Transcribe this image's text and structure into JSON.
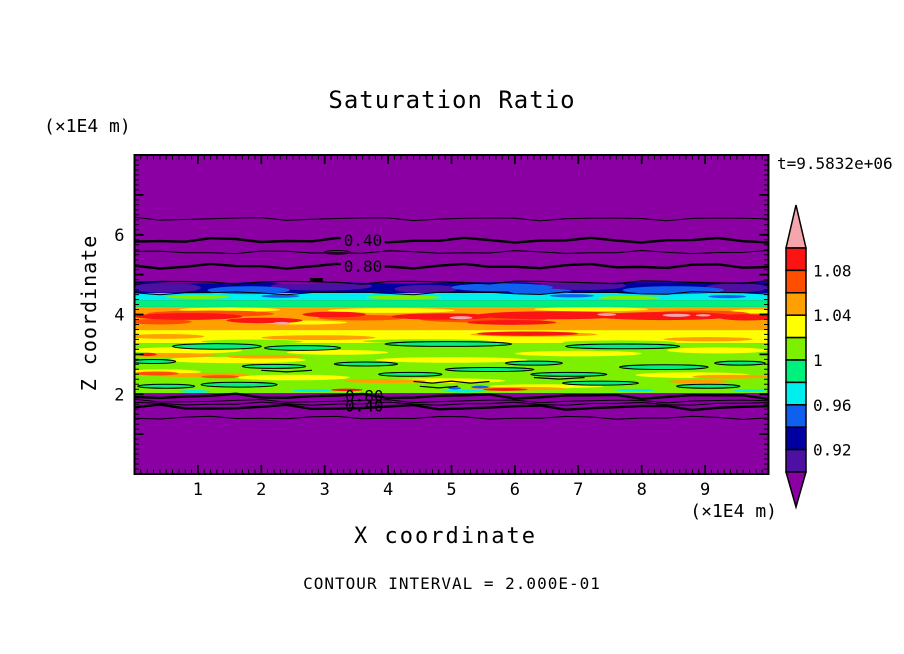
{
  "header": {
    "title": "Saturation Ratio",
    "time_annotation": "t=9.5832e+06"
  },
  "axes": {
    "x": {
      "title": "X coordinate",
      "unit": "(×1E4 m)",
      "range": [
        0,
        10
      ],
      "tick_labels": [
        "1",
        "2",
        "3",
        "4",
        "5",
        "6",
        "7",
        "8",
        "9"
      ],
      "minor_tick_step": 0.1
    },
    "z": {
      "title": "Z coordinate",
      "unit": "(×1E4 m)",
      "range": [
        0,
        8
      ],
      "tick_labels": [
        "2",
        "4",
        "6"
      ],
      "minor_tick_step": 0.125
    }
  },
  "footer": {
    "contour_note": "CONTOUR INTERVAL = 2.000E-01"
  },
  "chart_data": {
    "type": "heatmap",
    "title": "Saturation Ratio",
    "xlabel": "X coordinate",
    "ylabel": "Z coordinate",
    "x_unit": "(×1E4 m)",
    "z_unit": "(×1E4 m)",
    "x_range": [
      0,
      10
    ],
    "z_range": [
      0,
      8
    ],
    "x_tick_labels": [
      "1",
      "2",
      "3",
      "4",
      "5",
      "6",
      "7",
      "8",
      "9"
    ],
    "z_tick_labels": [
      "2",
      "4",
      "6"
    ],
    "time": "t=9.5832e+06",
    "contour_interval": 0.2,
    "contour_interval_label": "CONTOUR INTERVAL = 2.000E-01",
    "palette": {
      "P": "#8B00A3",
      "N": "#0000A0",
      "I": "#4E0FA3",
      "B": "#1060F0",
      "C": "#00EEEE",
      "S": "#00F07E",
      "G": "#7DF000",
      "Y": "#FFFF00",
      "O": "#FFA000",
      "R": "#FF4E00",
      "E": "#FA1414",
      "K": "#F4A6AC"
    },
    "background": "P",
    "colorbar": {
      "segments_top_to_bottom": [
        [
          "E",
          1.08,
          1.1
        ],
        [
          "R",
          1.06,
          1.08
        ],
        [
          "O",
          1.04,
          1.06
        ],
        [
          "Y",
          1.02,
          1.04
        ],
        [
          "G",
          1.0,
          1.02
        ],
        [
          "S",
          0.98,
          1.0
        ],
        [
          "C",
          0.96,
          0.98
        ],
        [
          "B",
          0.94,
          0.96
        ],
        [
          "N",
          0.92,
          0.94
        ],
        [
          "I",
          0.9,
          0.92
        ]
      ],
      "over_arrow_color": "K",
      "under_arrow_color": "P",
      "labels": [
        {
          "text": "1.08",
          "boundary": 1
        },
        {
          "text": "1.04",
          "boundary": 3
        },
        {
          "text": "1",
          "boundary": 5
        },
        {
          "text": "0.96",
          "boundary": 7
        },
        {
          "text": "0.92",
          "boundary": 9
        }
      ]
    },
    "layers": [
      [
        2.03,
        3.28,
        "G"
      ],
      [
        3.28,
        3.61,
        "Y"
      ],
      [
        3.61,
        4.19,
        "O"
      ],
      [
        4.19,
        4.36,
        "S"
      ],
      [
        4.36,
        4.54,
        "C"
      ],
      [
        4.54,
        4.81,
        "N"
      ]
    ],
    "blobs": [
      [
        0.5,
        4.67,
        0.55,
        0.12,
        "I"
      ],
      [
        2.95,
        4.71,
        0.8,
        0.11,
        "I"
      ],
      [
        4.6,
        4.64,
        0.5,
        0.1,
        "I"
      ],
      [
        7.05,
        4.72,
        0.7,
        0.11,
        "I"
      ],
      [
        9.5,
        4.67,
        0.5,
        0.11,
        "I"
      ],
      [
        1.8,
        4.61,
        0.65,
        0.1,
        "B"
      ],
      [
        5.8,
        4.68,
        0.8,
        0.1,
        "B"
      ],
      [
        8.5,
        4.61,
        0.8,
        0.1,
        "B"
      ],
      [
        6.4,
        4.58,
        0.5,
        0.07,
        "B"
      ],
      [
        1.05,
        4.84,
        0.8,
        0.06,
        "P"
      ],
      [
        4.2,
        4.85,
        1.0,
        0.07,
        "P"
      ],
      [
        6.9,
        4.83,
        0.9,
        0.05,
        "P"
      ],
      [
        9.1,
        4.85,
        0.8,
        0.05,
        "P"
      ],
      [
        2.6,
        4.8,
        0.4,
        0.04,
        "P"
      ],
      [
        1.0,
        4.44,
        0.5,
        0.05,
        "G"
      ],
      [
        4.25,
        4.43,
        0.6,
        0.05,
        "G"
      ],
      [
        7.8,
        4.42,
        0.5,
        0.045,
        "G"
      ],
      [
        2.3,
        4.46,
        0.3,
        0.04,
        "B"
      ],
      [
        6.9,
        4.47,
        0.35,
        0.04,
        "B"
      ],
      [
        9.35,
        4.45,
        0.3,
        0.04,
        "B"
      ],
      [
        3.2,
        4.3,
        0.5,
        0.05,
        "S"
      ],
      [
        5.9,
        4.28,
        0.6,
        0.05,
        "S"
      ],
      [
        8.9,
        4.29,
        0.5,
        0.04,
        "S"
      ],
      [
        1.5,
        4.12,
        0.8,
        0.055,
        "Y"
      ],
      [
        4.05,
        4.1,
        1.0,
        0.06,
        "Y"
      ],
      [
        7.2,
        4.13,
        0.9,
        0.05,
        "Y"
      ],
      [
        2.65,
        3.8,
        0.7,
        0.05,
        "Y"
      ],
      [
        9.8,
        4.08,
        0.4,
        0.05,
        "Y"
      ],
      [
        1.2,
        4.02,
        1.0,
        0.08,
        "R"
      ],
      [
        5.5,
        3.88,
        1.0,
        0.08,
        "R"
      ],
      [
        8.9,
        4.02,
        0.8,
        0.08,
        "R"
      ],
      [
        3.6,
        3.92,
        0.7,
        0.07,
        "R"
      ],
      [
        0.4,
        3.82,
        0.5,
        0.07,
        "R"
      ],
      [
        0.85,
        3.95,
        0.85,
        0.085,
        "E"
      ],
      [
        2.05,
        3.85,
        0.6,
        0.07,
        "E"
      ],
      [
        3.15,
        4.0,
        0.5,
        0.07,
        "E"
      ],
      [
        4.85,
        3.95,
        0.8,
        0.08,
        "E"
      ],
      [
        6.6,
        3.98,
        1.2,
        0.1,
        "E"
      ],
      [
        8.35,
        3.96,
        1.1,
        0.1,
        "E"
      ],
      [
        9.65,
        3.93,
        0.45,
        0.08,
        "E"
      ],
      [
        5.95,
        3.8,
        0.7,
        0.06,
        "E"
      ],
      [
        2.32,
        3.78,
        0.13,
        0.035,
        "K"
      ],
      [
        5.15,
        3.92,
        0.18,
        0.038,
        "K"
      ],
      [
        7.45,
        4.0,
        0.15,
        0.034,
        "K"
      ],
      [
        8.55,
        3.98,
        0.22,
        0.04,
        "K"
      ],
      [
        8.97,
        3.98,
        0.12,
        0.03,
        "K"
      ],
      [
        0.5,
        3.45,
        0.6,
        0.06,
        "O"
      ],
      [
        2.9,
        3.42,
        0.9,
        0.06,
        "O"
      ],
      [
        6.3,
        3.5,
        1.0,
        0.055,
        "O"
      ],
      [
        9.05,
        3.38,
        0.7,
        0.055,
        "O"
      ],
      [
        6.2,
        3.52,
        0.8,
        0.055,
        "E"
      ],
      [
        1.85,
        3.32,
        0.8,
        0.05,
        "G"
      ],
      [
        4.6,
        3.33,
        1.0,
        0.05,
        "G"
      ],
      [
        7.65,
        3.3,
        0.9,
        0.05,
        "G"
      ],
      [
        0.8,
        3.1,
        0.9,
        0.08,
        "Y"
      ],
      [
        1.6,
        2.86,
        1.1,
        0.08,
        "Y"
      ],
      [
        3.2,
        3.05,
        0.8,
        0.06,
        "Y"
      ],
      [
        5.0,
        2.86,
        1.2,
        0.07,
        "Y"
      ],
      [
        7.0,
        3.02,
        1.0,
        0.07,
        "Y"
      ],
      [
        9.2,
        3.1,
        0.8,
        0.075,
        "Y"
      ],
      [
        2.5,
        2.42,
        0.9,
        0.07,
        "Y"
      ],
      [
        4.85,
        2.34,
        1.0,
        0.06,
        "Y"
      ],
      [
        8.8,
        2.48,
        0.9,
        0.07,
        "Y"
      ],
      [
        6.5,
        2.2,
        0.9,
        0.05,
        "Y"
      ],
      [
        0.45,
        2.56,
        0.6,
        0.065,
        "Y"
      ],
      [
        0.6,
        2.98,
        0.7,
        0.055,
        "O"
      ],
      [
        1.05,
        2.48,
        0.75,
        0.055,
        "O"
      ],
      [
        3.95,
        2.33,
        0.65,
        0.05,
        "O"
      ],
      [
        6.05,
        2.14,
        0.75,
        0.045,
        "O"
      ],
      [
        9.4,
        2.44,
        0.6,
        0.05,
        "O"
      ],
      [
        2.05,
        2.94,
        0.6,
        0.045,
        "O"
      ],
      [
        8.9,
        2.32,
        0.5,
        0.045,
        "O"
      ],
      [
        0.35,
        2.52,
        0.35,
        0.05,
        "R"
      ],
      [
        1.35,
        2.44,
        0.3,
        0.04,
        "R"
      ],
      [
        5.85,
        2.12,
        0.35,
        0.035,
        "E"
      ],
      [
        3.35,
        2.11,
        0.25,
        0.03,
        "E"
      ],
      [
        0.2,
        3.0,
        0.15,
        0.04,
        "E"
      ],
      [
        1.3,
        3.2,
        0.7,
        0.07,
        "S",
        1
      ],
      [
        2.65,
        3.16,
        0.6,
        0.06,
        "S",
        1
      ],
      [
        4.95,
        3.26,
        1.0,
        0.06,
        "S",
        1
      ],
      [
        7.7,
        3.2,
        0.9,
        0.06,
        "S",
        1
      ],
      [
        2.2,
        2.7,
        0.5,
        0.05,
        "S",
        1
      ],
      [
        3.65,
        2.76,
        0.5,
        0.05,
        "S",
        1
      ],
      [
        5.6,
        2.62,
        0.7,
        0.05,
        "S",
        1
      ],
      [
        6.85,
        2.5,
        0.6,
        0.05,
        "S",
        1
      ],
      [
        8.35,
        2.68,
        0.7,
        0.06,
        "S",
        1
      ],
      [
        9.55,
        2.78,
        0.4,
        0.05,
        "S",
        1
      ],
      [
        1.65,
        2.24,
        0.6,
        0.06,
        "S",
        1
      ],
      [
        4.35,
        2.5,
        0.5,
        0.05,
        "S",
        1
      ],
      [
        7.35,
        2.28,
        0.6,
        0.05,
        "S",
        1
      ],
      [
        9.05,
        2.2,
        0.5,
        0.05,
        "S",
        1
      ],
      [
        0.5,
        2.2,
        0.45,
        0.05,
        "S",
        1
      ],
      [
        6.3,
        2.78,
        0.45,
        0.05,
        "S",
        1
      ],
      [
        0.3,
        2.82,
        0.35,
        0.05,
        "S",
        1
      ],
      [
        2.8,
        2.09,
        0.3,
        0.035,
        "C"
      ],
      [
        5.2,
        2.08,
        0.35,
        0.035,
        "C"
      ],
      [
        7.9,
        2.1,
        0.3,
        0.035,
        "C"
      ],
      [
        0.95,
        2.07,
        0.25,
        0.035,
        "C"
      ],
      [
        9.7,
        2.09,
        0.25,
        0.035,
        "C"
      ],
      [
        5.45,
        2.18,
        0.14,
        0.035,
        "B"
      ],
      [
        5.05,
        2.15,
        0.1,
        0.03,
        "B"
      ]
    ],
    "squiggles": [
      [
        [
          4.4,
          2.32
        ],
        [
          4.7,
          2.28
        ],
        [
          5.0,
          2.33
        ],
        [
          5.3,
          2.28
        ],
        [
          5.6,
          2.32
        ]
      ],
      [
        [
          4.5,
          2.2
        ],
        [
          4.8,
          2.16
        ],
        [
          5.1,
          2.2
        ]
      ],
      [
        [
          6.3,
          2.42
        ],
        [
          6.7,
          2.38
        ],
        [
          7.1,
          2.42
        ]
      ],
      [
        [
          2.0,
          2.6
        ],
        [
          2.4,
          2.56
        ],
        [
          2.8,
          2.6
        ]
      ]
    ],
    "contour_lines": [
      {
        "z": 6.4,
        "w": 1
      },
      {
        "z": 5.86,
        "w": 2.4
      },
      {
        "z": 5.56,
        "w": 1
      },
      {
        "z": 5.21,
        "w": 2.4
      },
      {
        "z": 4.81,
        "w": 1.2
      },
      {
        "z": 4.54,
        "w": 1
      },
      {
        "z": 1.95,
        "w": 2.4
      },
      {
        "z": 1.83,
        "w": 1
      },
      {
        "z": 1.76,
        "w": 1
      },
      {
        "z": 1.67,
        "w": 2.4
      },
      {
        "z": 1.41,
        "w": 1
      }
    ],
    "contour_labels": [
      {
        "text": "0.40",
        "x": 3.3,
        "z": 5.86,
        "bg": true
      },
      {
        "text": "0.80",
        "x": 3.3,
        "z": 5.21,
        "bg": true
      },
      {
        "text": "0.80",
        "x": 3.32,
        "z": 1.95,
        "bg": false
      },
      {
        "text": "0.40",
        "x": 3.32,
        "z": 1.7,
        "bg": false
      }
    ],
    "loop": {
      "x": 3.2,
      "z": 5.56,
      "rx": 0.2,
      "rz": 0.045
    },
    "dash": {
      "x1": 2.77,
      "x2": 2.97,
      "z": 4.87
    }
  }
}
